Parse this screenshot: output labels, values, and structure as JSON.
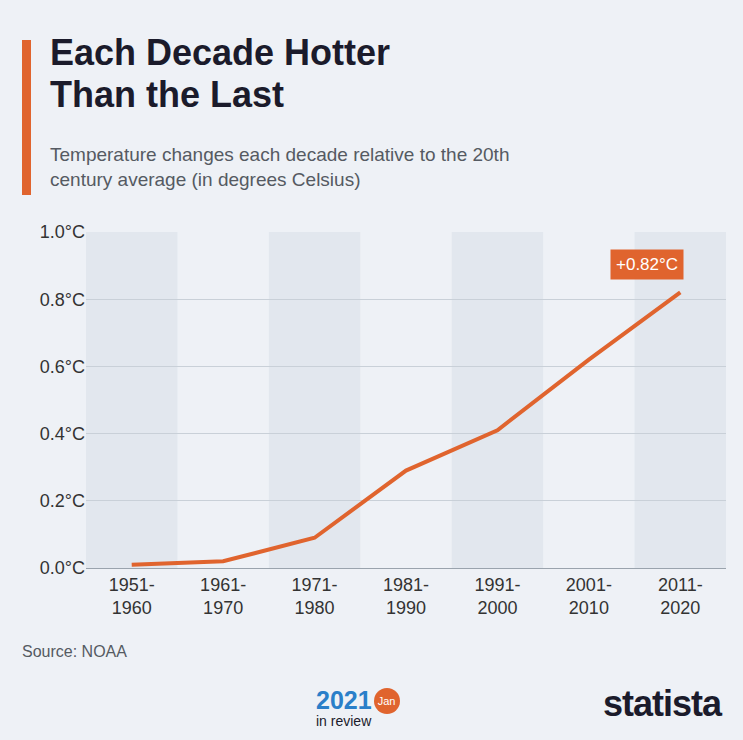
{
  "chart_data": {
    "type": "line",
    "title": "Each Decade Hotter Than the Last",
    "subtitle": "Temperature changes each decade relative to the 20th century average (in degrees Celsius)",
    "categories": [
      "1951-1960",
      "1961-1970",
      "1971-1980",
      "1981-1990",
      "1991-2000",
      "2001-2010",
      "2011-2020"
    ],
    "values": [
      0.01,
      0.02,
      0.09,
      0.29,
      0.41,
      0.62,
      0.82
    ],
    "color": "#e0642e",
    "ylim": [
      0,
      1
    ],
    "yticks": [
      {
        "value": 0,
        "label": "0.0°C"
      },
      {
        "value": 0.2,
        "label": "0.2°C"
      },
      {
        "value": 0.4,
        "label": "0.4°C"
      },
      {
        "value": 0.6,
        "label": "0.6°C"
      },
      {
        "value": 0.8,
        "label": "0.8°C"
      },
      {
        "value": 1,
        "label": "1.0°C"
      }
    ],
    "grid": true,
    "annotations": [
      {
        "category": "2011-2020",
        "y": 0.82,
        "text": "+0.82°C"
      }
    ],
    "source": "Source: NOAA",
    "credits": {
      "badge_year": "2021",
      "badge_month": "Jan",
      "badge_text": "in review",
      "brand": "statista"
    }
  }
}
